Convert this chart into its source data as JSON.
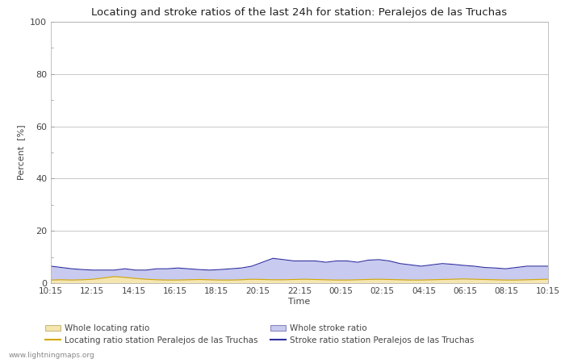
{
  "title": "Locating and stroke ratios of the last 24h for station: Peralejos de las Truchas",
  "xlabel": "Time",
  "ylabel": "Percent  [%]",
  "ylim": [
    0,
    100
  ],
  "yticks": [
    0,
    20,
    40,
    60,
    80,
    100
  ],
  "yticks_minor": [
    10,
    30,
    50,
    70,
    90
  ],
  "x_labels": [
    "10:15",
    "12:15",
    "14:15",
    "16:15",
    "18:15",
    "20:15",
    "22:15",
    "00:15",
    "02:15",
    "04:15",
    "06:15",
    "08:15",
    "10:15"
  ],
  "background_color": "#ffffff",
  "plot_bg_color": "#ffffff",
  "grid_color": "#c8c8c8",
  "watermark": "www.lightningmaps.org",
  "legend": [
    {
      "label": "Whole locating ratio",
      "type": "fill",
      "color": "#f5e6b0",
      "edge_color": "#c8b878"
    },
    {
      "label": "Locating ratio station Peralejos de las Truchas",
      "type": "line",
      "color": "#d4a800"
    },
    {
      "label": "Whole stroke ratio",
      "type": "fill",
      "color": "#c8caef",
      "edge_color": "#8888c0"
    },
    {
      "label": "Stroke ratio station Peralejos de las Truchas",
      "type": "line",
      "color": "#3030a0"
    }
  ],
  "whole_locating_ratio": [
    1.2,
    1.3,
    1.2,
    1.3,
    1.5,
    2.0,
    2.5,
    2.2,
    1.8,
    1.5,
    1.3,
    1.2,
    1.2,
    1.3,
    1.4,
    1.3,
    1.2,
    1.2,
    1.3,
    1.5,
    1.4,
    1.3,
    1.3,
    1.4,
    1.5,
    1.4,
    1.3,
    1.2,
    1.2,
    1.3,
    1.4,
    1.5,
    1.4,
    1.3,
    1.2,
    1.2,
    1.3,
    1.4,
    1.5,
    1.6,
    1.5,
    1.4,
    1.3,
    1.2,
    1.2,
    1.3,
    1.4,
    1.5
  ],
  "locating_ratio_station": [
    1.2,
    1.3,
    1.2,
    1.3,
    1.5,
    2.0,
    2.5,
    2.2,
    1.8,
    1.5,
    1.3,
    1.2,
    1.2,
    1.3,
    1.4,
    1.3,
    1.2,
    1.2,
    1.3,
    1.5,
    1.4,
    1.3,
    1.3,
    1.4,
    1.5,
    1.4,
    1.3,
    1.2,
    1.2,
    1.3,
    1.4,
    1.5,
    1.4,
    1.3,
    1.2,
    1.2,
    1.3,
    1.4,
    1.5,
    1.6,
    1.5,
    1.4,
    1.3,
    1.2,
    1.2,
    1.3,
    1.4,
    1.5
  ],
  "whole_stroke_ratio": [
    6.5,
    6.0,
    5.5,
    5.2,
    5.0,
    5.0,
    5.0,
    5.5,
    5.0,
    5.0,
    5.5,
    5.5,
    5.8,
    5.5,
    5.2,
    5.0,
    5.2,
    5.5,
    5.8,
    6.5,
    8.0,
    9.5,
    9.0,
    8.5,
    8.5,
    8.5,
    8.0,
    8.5,
    8.5,
    8.0,
    8.8,
    9.0,
    8.5,
    7.5,
    7.0,
    6.5,
    7.0,
    7.5,
    7.2,
    6.8,
    6.5,
    6.0,
    5.8,
    5.5,
    6.0,
    6.5,
    6.5,
    6.5
  ],
  "stroke_ratio_station": [
    6.5,
    6.0,
    5.5,
    5.2,
    5.0,
    5.0,
    5.0,
    5.5,
    5.0,
    5.0,
    5.5,
    5.5,
    5.8,
    5.5,
    5.2,
    5.0,
    5.2,
    5.5,
    5.8,
    6.5,
    8.0,
    9.5,
    9.0,
    8.5,
    8.5,
    8.5,
    8.0,
    8.5,
    8.5,
    8.0,
    8.8,
    9.0,
    8.5,
    7.5,
    7.0,
    6.5,
    7.0,
    7.5,
    7.2,
    6.8,
    6.5,
    6.0,
    5.8,
    5.5,
    6.0,
    6.5,
    6.5,
    6.5
  ],
  "n_points": 48
}
